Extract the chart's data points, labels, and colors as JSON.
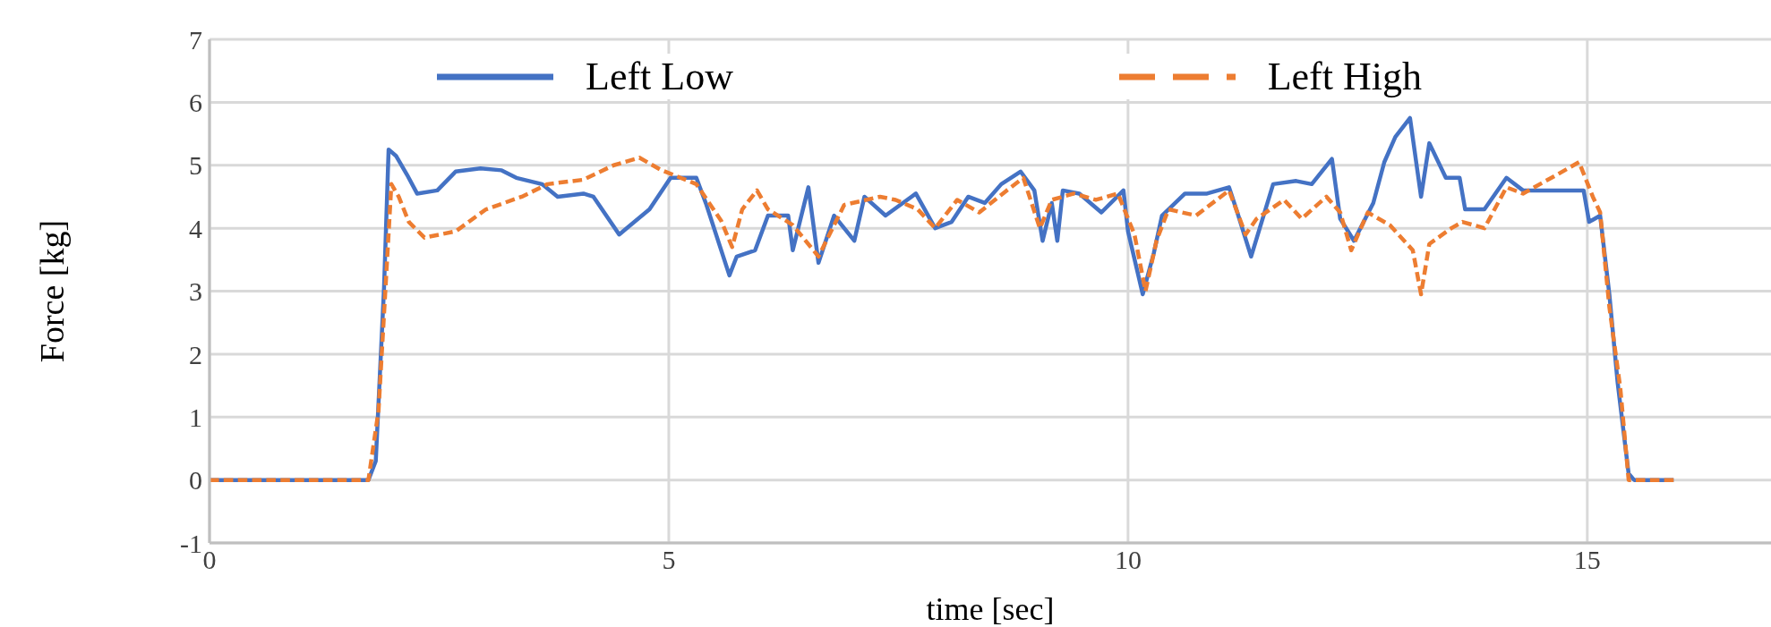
{
  "chart_data": {
    "type": "line",
    "xlabel": "time [sec]",
    "ylabel": "Force [kg]",
    "xlim": [
      0,
      17
    ],
    "xticks": [
      0,
      5,
      10,
      15
    ],
    "ylim": [
      -1,
      7
    ],
    "yticks": [
      -1,
      0,
      1,
      2,
      3,
      4,
      5,
      6,
      7
    ],
    "grid": true,
    "legend": "top",
    "marker": "none",
    "series": [
      {
        "name": "Left Low",
        "color": "#4472c4",
        "line_style": "solid",
        "x": [
          0,
          1.73,
          1.81,
          1.9,
          1.95,
          2.03,
          2.15,
          2.26,
          2.48,
          2.68,
          2.95,
          3.18,
          3.34,
          3.62,
          3.79,
          4.07,
          4.18,
          4.46,
          4.79,
          5.02,
          5.3,
          5.41,
          5.66,
          5.74,
          5.94,
          6.08,
          6.3,
          6.35,
          6.52,
          6.63,
          6.8,
          7.02,
          7.13,
          7.36,
          7.69,
          7.9,
          8.08,
          8.26,
          8.44,
          8.62,
          8.83,
          8.98,
          9.07,
          9.17,
          9.23,
          9.29,
          9.47,
          9.71,
          9.95,
          10.0,
          10.16,
          10.28,
          10.37,
          10.62,
          10.86,
          11.1,
          11.19,
          11.34,
          11.58,
          11.83,
          12.0,
          12.22,
          12.31,
          12.46,
          12.67,
          12.79,
          12.91,
          13.07,
          13.19,
          13.28,
          13.46,
          13.61,
          13.67,
          13.88,
          14.12,
          14.3,
          14.96,
          15.02,
          15.14,
          15.24,
          15.33,
          15.45,
          15.51,
          15.94
        ],
        "values": [
          0,
          0,
          0.3,
          3.05,
          5.25,
          5.15,
          4.85,
          4.55,
          4.6,
          4.9,
          4.95,
          4.92,
          4.8,
          4.7,
          4.5,
          4.55,
          4.5,
          3.9,
          4.3,
          4.8,
          4.8,
          4.37,
          3.25,
          3.55,
          3.65,
          4.2,
          4.2,
          3.65,
          4.65,
          3.45,
          4.2,
          3.8,
          4.5,
          4.2,
          4.55,
          4.0,
          4.1,
          4.5,
          4.4,
          4.7,
          4.9,
          4.6,
          3.8,
          4.4,
          3.8,
          4.6,
          4.55,
          4.25,
          4.6,
          3.95,
          2.95,
          3.6,
          4.2,
          4.55,
          4.55,
          4.65,
          4.25,
          3.55,
          4.7,
          4.75,
          4.7,
          5.1,
          4.15,
          3.8,
          4.4,
          5.05,
          5.45,
          5.75,
          4.5,
          5.35,
          4.8,
          4.8,
          4.3,
          4.3,
          4.8,
          4.6,
          4.6,
          4.1,
          4.2,
          2.95,
          1.55,
          0.1,
          0,
          0
        ]
      },
      {
        "name": "Left High",
        "color": "#ed7d31",
        "line_style": "dashed",
        "x": [
          0,
          1.73,
          1.84,
          1.92,
          1.98,
          2.06,
          2.17,
          2.34,
          2.68,
          3.01,
          3.4,
          3.68,
          4.07,
          4.4,
          4.68,
          4.91,
          5.3,
          5.57,
          5.69,
          5.8,
          5.96,
          6.08,
          6.35,
          6.63,
          6.91,
          7.3,
          7.47,
          7.71,
          7.9,
          8.14,
          8.38,
          8.68,
          8.86,
          9.04,
          9.17,
          9.41,
          9.65,
          9.89,
          10.07,
          10.19,
          10.31,
          10.44,
          10.74,
          11.1,
          11.28,
          11.4,
          11.7,
          11.89,
          12.16,
          12.31,
          12.43,
          12.61,
          12.85,
          13.1,
          13.19,
          13.28,
          13.52,
          13.64,
          13.88,
          14.12,
          14.3,
          14.67,
          14.91,
          15.06,
          15.14,
          15.24,
          15.36,
          15.45,
          15.94
        ],
        "values": [
          0,
          0,
          1.1,
          3.15,
          4.7,
          4.5,
          4.1,
          3.85,
          3.95,
          4.3,
          4.5,
          4.7,
          4.77,
          5.0,
          5.12,
          4.93,
          4.7,
          4.12,
          3.7,
          4.3,
          4.6,
          4.3,
          4.05,
          3.55,
          4.37,
          4.5,
          4.45,
          4.3,
          4.0,
          4.45,
          4.25,
          4.6,
          4.8,
          4.0,
          4.45,
          4.55,
          4.45,
          4.55,
          3.9,
          3.0,
          3.8,
          4.3,
          4.2,
          4.6,
          3.9,
          4.15,
          4.45,
          4.15,
          4.5,
          4.25,
          3.65,
          4.25,
          4.05,
          3.65,
          2.95,
          3.75,
          4.0,
          4.1,
          4.0,
          4.65,
          4.55,
          4.85,
          5.05,
          4.5,
          4.25,
          2.75,
          1.45,
          0,
          0
        ]
      }
    ]
  }
}
